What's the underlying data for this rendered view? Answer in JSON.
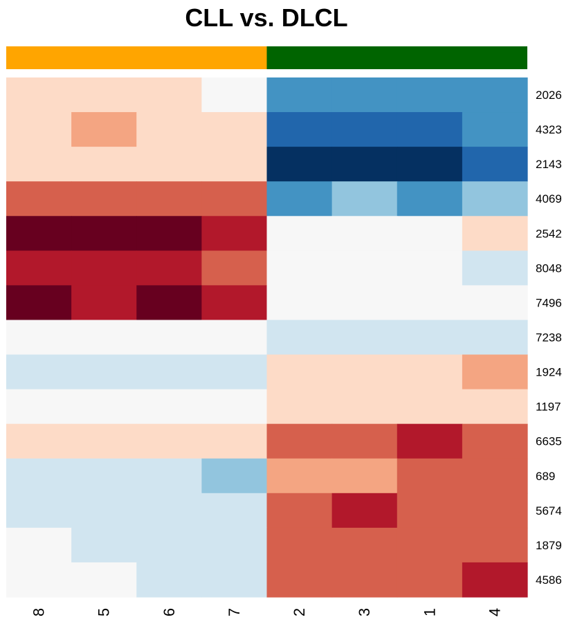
{
  "chart_data": {
    "type": "heatmap",
    "title": "CLL vs. DLCL",
    "columns": [
      "8",
      "5",
      "6",
      "7",
      "2",
      "3",
      "1",
      "4"
    ],
    "column_groups": [
      {
        "name": "CLL",
        "columns": [
          "8",
          "5",
          "6",
          "7"
        ],
        "color": "#FFA500"
      },
      {
        "name": "DLCL",
        "columns": [
          "2",
          "3",
          "1",
          "4"
        ],
        "color": "#006400"
      }
    ],
    "rows": [
      "2026",
      "4323",
      "2143",
      "4069",
      "2542",
      "8048",
      "7496",
      "7238",
      "1924",
      "1197",
      "6635",
      "689",
      "5674",
      "1879",
      "4586"
    ],
    "values": [
      [
        1,
        1,
        1,
        0,
        -3,
        -3,
        -3,
        -3
      ],
      [
        1,
        2,
        1,
        1,
        -4,
        -4,
        -4,
        -3
      ],
      [
        1,
        1,
        1,
        1,
        -5,
        -5,
        -5,
        -4
      ],
      [
        3,
        3,
        3,
        3,
        -3,
        -2,
        -3,
        -2
      ],
      [
        5,
        5,
        5,
        4,
        0,
        0,
        0,
        1
      ],
      [
        4,
        4,
        4,
        3,
        0,
        0,
        0,
        -1
      ],
      [
        5,
        4,
        5,
        4,
        0,
        0,
        0,
        0
      ],
      [
        0,
        0,
        0,
        0,
        -1,
        -1,
        -1,
        -1
      ],
      [
        -1,
        -1,
        -1,
        -1,
        1,
        1,
        1,
        2
      ],
      [
        0,
        0,
        0,
        0,
        1,
        1,
        1,
        1
      ],
      [
        1,
        1,
        1,
        1,
        3,
        3,
        4,
        3
      ],
      [
        -1,
        -1,
        -1,
        -2,
        2,
        2,
        3,
        3
      ],
      [
        -1,
        -1,
        -1,
        -1,
        3,
        4,
        3,
        3
      ],
      [
        0,
        -1,
        -1,
        -1,
        3,
        3,
        3,
        3
      ],
      [
        0,
        0,
        -1,
        -1,
        3,
        3,
        3,
        4
      ]
    ],
    "color_scale": {
      "-5": "#053061",
      "-4": "#2166AC",
      "-3": "#4393C3",
      "-2": "#92C5DE",
      "-1": "#D1E5F0",
      "0": "#F7F7F7",
      "1": "#FDDBC7",
      "2": "#F4A582",
      "3": "#D6604D",
      "4": "#B2182B",
      "5": "#67001F"
    },
    "legend": "none"
  }
}
